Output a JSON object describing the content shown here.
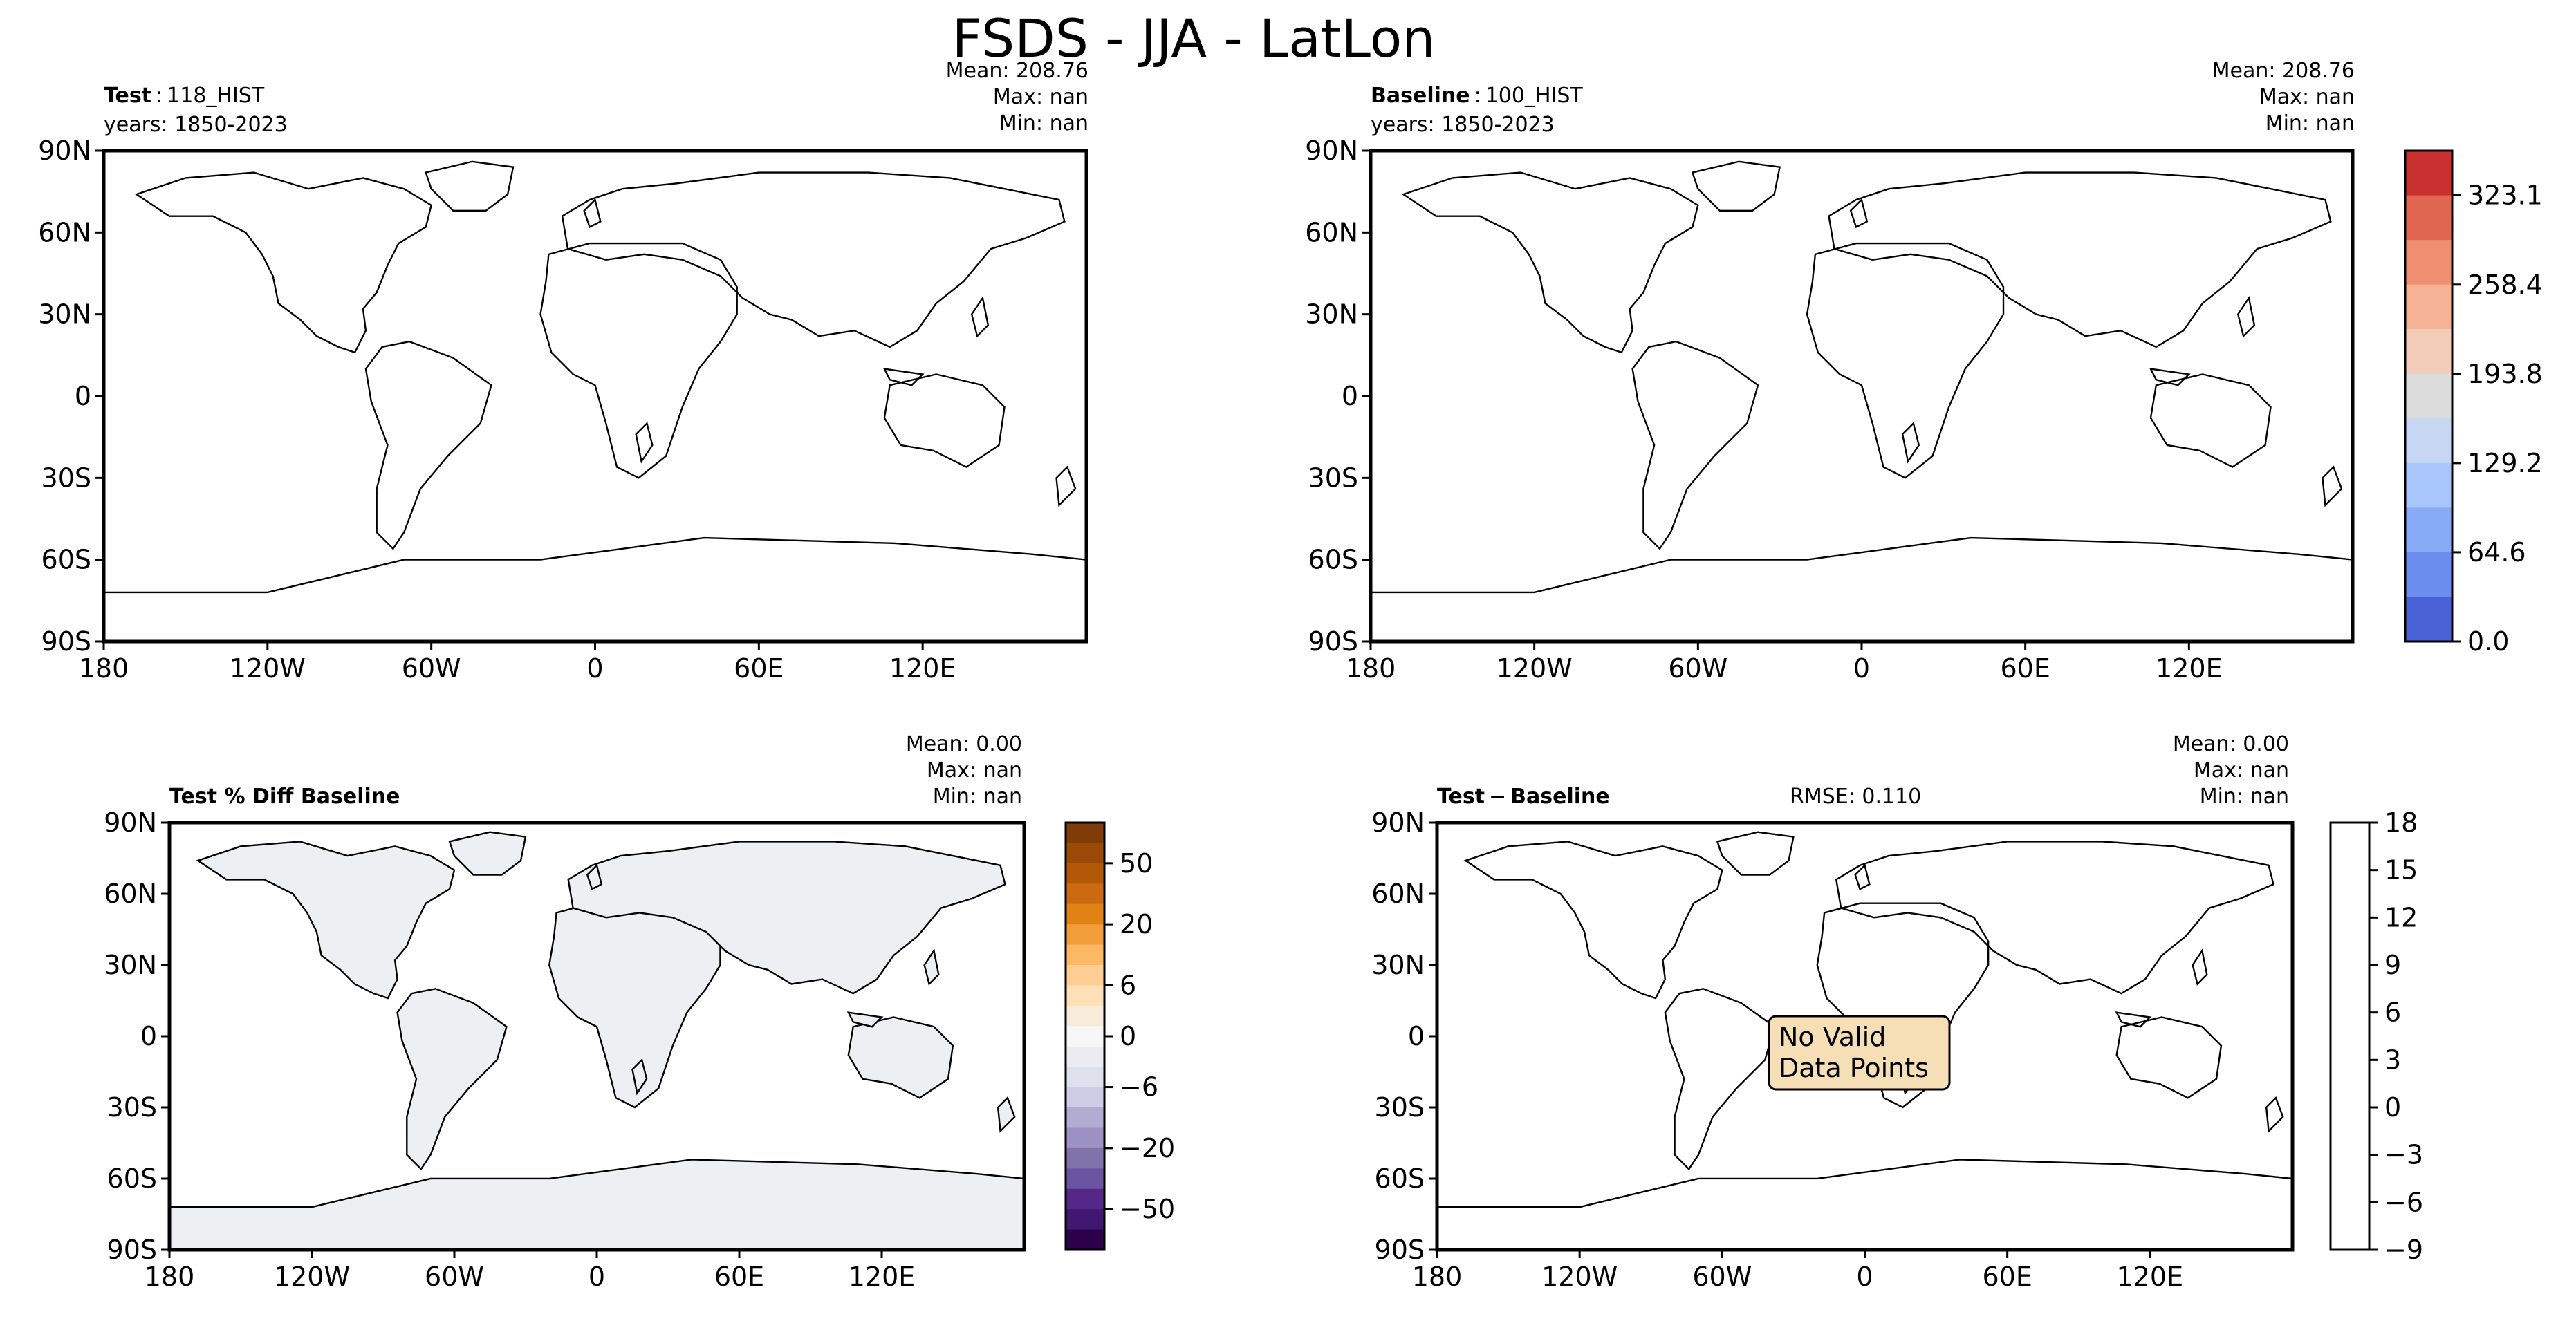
{
  "figure": {
    "title": "FSDS - JJA - LatLon"
  },
  "panels": {
    "test": {
      "label_key": "Test",
      "label_sep": ":",
      "label_value": "118_HIST",
      "years": "years: 1850-2023",
      "stats": {
        "mean": "Mean: 208.76",
        "max": "Max:   nan",
        "min": "Min:   nan"
      }
    },
    "baseline": {
      "label_key": "Baseline",
      "label_sep": ":",
      "label_value": "100_HIST",
      "years": "years: 1850-2023",
      "stats": {
        "mean": "Mean: 208.76",
        "max": "Max:   nan",
        "min": "Min:   nan"
      }
    },
    "pct_diff": {
      "label": "Test % Diff Baseline",
      "stats": {
        "mean": "Mean:  0.00",
        "max": "Max:   nan",
        "min": "Min:   nan"
      }
    },
    "diff": {
      "label_key": "Test",
      "label_sep": "−",
      "label_value": "Baseline",
      "rmse": "RMSE: 0.110",
      "stats": {
        "mean": "Mean:  0.00",
        "max": "Max:   nan",
        "min": "Min:   nan"
      },
      "message": [
        "No Valid",
        "Data Points"
      ]
    }
  },
  "axes": {
    "lon_ticks": [
      "180",
      "120W",
      "60W",
      "0",
      "60E",
      "120E"
    ],
    "lat_ticks": [
      "90N",
      "60N",
      "30N",
      "0",
      "30S",
      "60S",
      "90S"
    ]
  },
  "colorbars": {
    "main": {
      "ticks": [
        "323.1",
        "258.4",
        "193.8",
        "129.2",
        "64.6",
        "0.0"
      ],
      "colors_top_to_bottom": [
        "#c93030",
        "#e0664f",
        "#ef8f70",
        "#f6b295",
        "#f3cdb8",
        "#dcdcdc",
        "#c7d6f2",
        "#a9c6fb",
        "#88abf8",
        "#6b8ded",
        "#4b62d6"
      ]
    },
    "pct_diff": {
      "ticks": [
        "50",
        "20",
        "6",
        "0",
        "−6",
        "−20",
        "−50"
      ],
      "colors_top_to_bottom": [
        "#7f3b08",
        "#9a4a06",
        "#b35806",
        "#cc6a12",
        "#e08214",
        "#f09d3a",
        "#fdb863",
        "#fdcd92",
        "#fee0b6",
        "#f7ecda",
        "#f7f7f7",
        "#ebebf1",
        "#dfe0ee",
        "#cfcde6",
        "#b2abd2",
        "#9c91c3",
        "#8073ac",
        "#6b54a0",
        "#542788",
        "#3f1770",
        "#2d004b"
      ]
    },
    "diff": {
      "ticks": [
        "18",
        "15",
        "12",
        "9",
        "6",
        "3",
        "0",
        "−3",
        "−6",
        "−9"
      ]
    }
  },
  "chart_data": [
    {
      "type": "heatmap",
      "title": "Test : 118_HIST",
      "variable": "FSDS",
      "season": "JJA",
      "years": "1850-2023",
      "mean": 208.76,
      "max": "nan",
      "min": "nan",
      "colorbar_levels": [
        0.0,
        64.6,
        129.2,
        193.8,
        258.4,
        323.1
      ],
      "xlim": [
        -180,
        180
      ],
      "ylim": [
        -90,
        90
      ]
    },
    {
      "type": "heatmap",
      "title": "Baseline : 100_HIST",
      "variable": "FSDS",
      "season": "JJA",
      "years": "1850-2023",
      "mean": 208.76,
      "max": "nan",
      "min": "nan",
      "colorbar_levels": [
        0.0,
        64.6,
        129.2,
        193.8,
        258.4,
        323.1
      ],
      "xlim": [
        -180,
        180
      ],
      "ylim": [
        -90,
        90
      ]
    },
    {
      "type": "heatmap",
      "title": "Test % Diff Baseline",
      "mean": 0.0,
      "max": "nan",
      "min": "nan",
      "colorbar_levels": [
        -50,
        -20,
        -6,
        0,
        6,
        20,
        50
      ],
      "xlim": [
        -180,
        180
      ],
      "ylim": [
        -90,
        90
      ]
    },
    {
      "type": "heatmap",
      "title": "Test − Baseline",
      "mean": 0.0,
      "max": "nan",
      "min": "nan",
      "rmse": 0.11,
      "colorbar_levels": [
        -9,
        -6,
        -3,
        0,
        3,
        6,
        9,
        12,
        15,
        18
      ],
      "xlim": [
        -180,
        180
      ],
      "ylim": [
        -90,
        90
      ]
    }
  ]
}
